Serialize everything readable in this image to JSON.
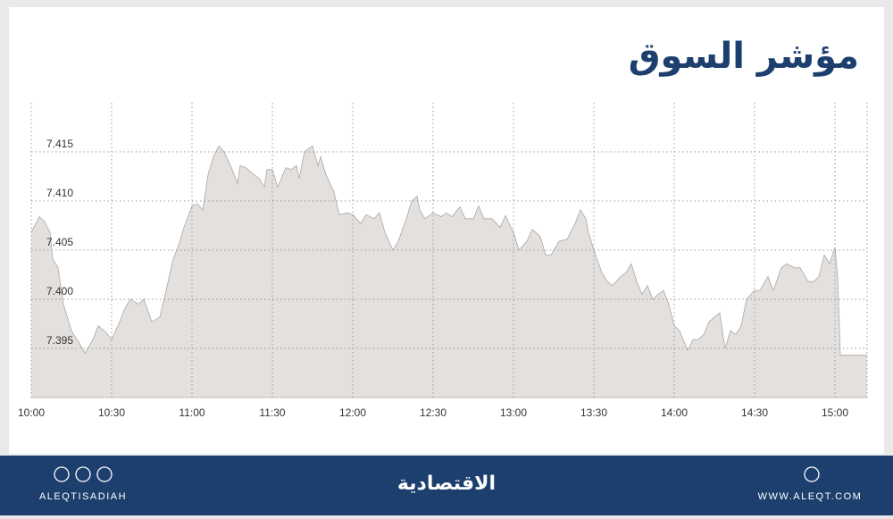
{
  "chart_data": {
    "type": "area",
    "title": "مؤشر السوق",
    "x": [
      "10:00",
      "10:03",
      "10:05",
      "10:07",
      "10:08",
      "10:10",
      "10:12",
      "10:15",
      "10:18",
      "10:20",
      "10:23",
      "10:25",
      "10:28",
      "10:30",
      "10:33",
      "10:35",
      "10:37",
      "10:40",
      "10:42",
      "10:45",
      "10:48",
      "10:50",
      "10:53",
      "10:55",
      "10:57",
      "11:00",
      "11:02",
      "11:04",
      "11:06",
      "11:08",
      "11:10",
      "11:12",
      "11:15",
      "11:17",
      "11:18",
      "11:20",
      "11:23",
      "11:25",
      "11:27",
      "11:28",
      "11:30",
      "11:32",
      "11:35",
      "11:37",
      "11:39",
      "11:40",
      "11:42",
      "11:45",
      "11:47",
      "11:48",
      "11:50",
      "11:53",
      "11:55",
      "11:58",
      "12:00",
      "12:03",
      "12:05",
      "12:08",
      "12:10",
      "12:12",
      "12:15",
      "12:17",
      "12:20",
      "12:22",
      "12:24",
      "12:25",
      "12:27",
      "12:30",
      "12:33",
      "12:35",
      "12:37",
      "12:40",
      "12:42",
      "12:45",
      "12:47",
      "12:49",
      "12:52",
      "12:55",
      "12:57",
      "13:00",
      "13:02",
      "13:05",
      "13:07",
      "13:10",
      "13:12",
      "13:14",
      "13:17",
      "13:20",
      "13:23",
      "13:25",
      "13:27",
      "13:28",
      "13:30",
      "13:33",
      "13:35",
      "13:37",
      "13:40",
      "13:42",
      "13:44",
      "13:46",
      "13:48",
      "13:50",
      "13:52",
      "13:54",
      "13:56",
      "13:58",
      "14:00",
      "14:02",
      "14:05",
      "14:07",
      "14:09",
      "14:11",
      "14:13",
      "14:15",
      "14:17",
      "14:19",
      "14:21",
      "14:23",
      "14:25",
      "14:27",
      "14:30",
      "14:32",
      "14:35",
      "14:37",
      "14:40",
      "14:42",
      "14:45",
      "14:47",
      "14:50",
      "14:52",
      "14:54",
      "14:56",
      "14:58",
      "15:00",
      "15:01",
      "15:02",
      "15:12"
    ],
    "values": [
      7.4068,
      7.4084,
      7.4079,
      7.4068,
      7.4041,
      7.4032,
      7.3995,
      7.3968,
      7.3955,
      7.3945,
      7.3959,
      7.3973,
      7.3966,
      7.3959,
      7.3977,
      7.3991,
      7.4,
      7.3995,
      7.4,
      7.3977,
      7.3982,
      7.4005,
      7.4041,
      7.4055,
      7.4073,
      7.4095,
      7.4097,
      7.4091,
      7.4127,
      7.4145,
      7.4156,
      7.415,
      7.4132,
      7.4118,
      7.4136,
      7.4134,
      7.4127,
      7.4123,
      7.4114,
      7.4132,
      7.4132,
      7.4114,
      7.4134,
      7.4132,
      7.4136,
      7.4123,
      7.415,
      7.4156,
      7.4136,
      7.4145,
      7.4127,
      7.4109,
      7.4086,
      7.4088,
      7.4086,
      7.4077,
      7.4086,
      7.4082,
      7.4088,
      7.4068,
      7.405,
      7.4059,
      7.4082,
      7.41,
      7.4105,
      7.4091,
      7.4082,
      7.4088,
      7.4084,
      7.4088,
      7.4084,
      7.4094,
      7.4082,
      7.4082,
      7.4095,
      7.4082,
      7.4082,
      7.4073,
      7.4085,
      7.4068,
      7.405,
      7.4059,
      7.4071,
      7.4064,
      7.4045,
      7.4045,
      7.4059,
      7.4061,
      7.4077,
      7.4091,
      7.4082,
      7.4068,
      7.405,
      7.4027,
      7.4018,
      7.4014,
      7.4023,
      7.4027,
      7.4036,
      7.4018,
      7.4005,
      7.4014,
      7.4,
      7.4005,
      7.4009,
      7.3995,
      7.3973,
      7.3968,
      7.3948,
      7.3959,
      7.3959,
      7.3964,
      7.3977,
      7.3982,
      7.3986,
      7.395,
      7.3968,
      7.3964,
      7.3973,
      7.4,
      7.4009,
      7.4009,
      7.4023,
      7.4009,
      7.4032,
      7.4036,
      7.4032,
      7.4032,
      7.4018,
      7.4018,
      7.4023,
      7.4045,
      7.4036,
      7.4053,
      7.4023,
      7.3943,
      7.3943
    ],
    "color": "#e3e0de",
    "line_color": "#a8a8a8",
    "xlim": [
      "10:00",
      "15:12"
    ],
    "xticks": [
      "10:00",
      "10:30",
      "11:00",
      "11:30",
      "12:00",
      "12:30",
      "13:00",
      "13:30",
      "14:00",
      "14:30",
      "15:00"
    ],
    "ylim": [
      7.39,
      7.42
    ],
    "yticks": [
      7.395,
      {
        "value": 7.4,
        "label": "7.400"
      },
      7.405,
      {
        "value": 7.41,
        "label": "7.410"
      },
      7.415
    ],
    "grid": true
  },
  "footer": {
    "social_handle": "ALEQTISADIAH",
    "logo": "الاقتصادية",
    "website": "WWW.ALEQT.COM"
  }
}
